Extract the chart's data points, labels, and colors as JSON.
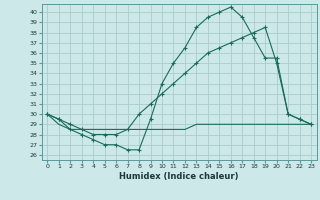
{
  "xlabel": "Humidex (Indice chaleur)",
  "background_color": "#cce8e8",
  "grid_color": "#aacccc",
  "line_color": "#1a6b5a",
  "xlim": [
    -0.5,
    23.5
  ],
  "ylim": [
    25.5,
    40.8
  ],
  "yticks": [
    26,
    27,
    28,
    29,
    30,
    31,
    32,
    33,
    34,
    35,
    36,
    37,
    38,
    39,
    40
  ],
  "xticks": [
    0,
    1,
    2,
    3,
    4,
    5,
    6,
    7,
    8,
    9,
    10,
    11,
    12,
    13,
    14,
    15,
    16,
    17,
    18,
    19,
    20,
    21,
    22,
    23
  ],
  "series1_x": [
    0,
    1,
    2,
    3,
    4,
    5,
    6,
    7,
    8,
    9,
    10,
    11,
    12,
    13,
    14,
    15,
    16,
    17,
    18,
    19,
    20,
    21,
    22,
    23
  ],
  "series1_y": [
    30.0,
    29.5,
    28.5,
    28.0,
    27.5,
    27.0,
    27.0,
    26.5,
    26.5,
    29.5,
    33.0,
    35.0,
    36.5,
    38.5,
    39.5,
    40.0,
    40.5,
    39.5,
    37.5,
    35.5,
    35.5,
    30.0,
    29.5,
    29.0
  ],
  "series2_x": [
    0,
    1,
    2,
    3,
    4,
    5,
    6,
    7,
    8,
    9,
    10,
    11,
    12,
    13,
    14,
    15,
    16,
    17,
    18,
    19,
    20,
    21,
    22,
    23
  ],
  "series2_y": [
    30.0,
    29.5,
    29.0,
    28.5,
    28.0,
    28.0,
    28.0,
    28.5,
    30.0,
    31.0,
    32.0,
    33.0,
    34.0,
    35.0,
    36.0,
    36.5,
    37.0,
    37.5,
    38.0,
    38.5,
    35.0,
    30.0,
    29.5,
    29.0
  ],
  "series3_x": [
    0,
    1,
    2,
    3,
    4,
    5,
    6,
    7,
    8,
    9,
    10,
    11,
    12,
    13,
    14,
    15,
    16,
    17,
    18,
    19,
    20,
    21,
    22,
    23
  ],
  "series3_y": [
    30.0,
    29.0,
    28.5,
    28.5,
    28.5,
    28.5,
    28.5,
    28.5,
    28.5,
    28.5,
    28.5,
    28.5,
    28.5,
    29.0,
    29.0,
    29.0,
    29.0,
    29.0,
    29.0,
    29.0,
    29.0,
    29.0,
    29.0,
    29.0
  ]
}
